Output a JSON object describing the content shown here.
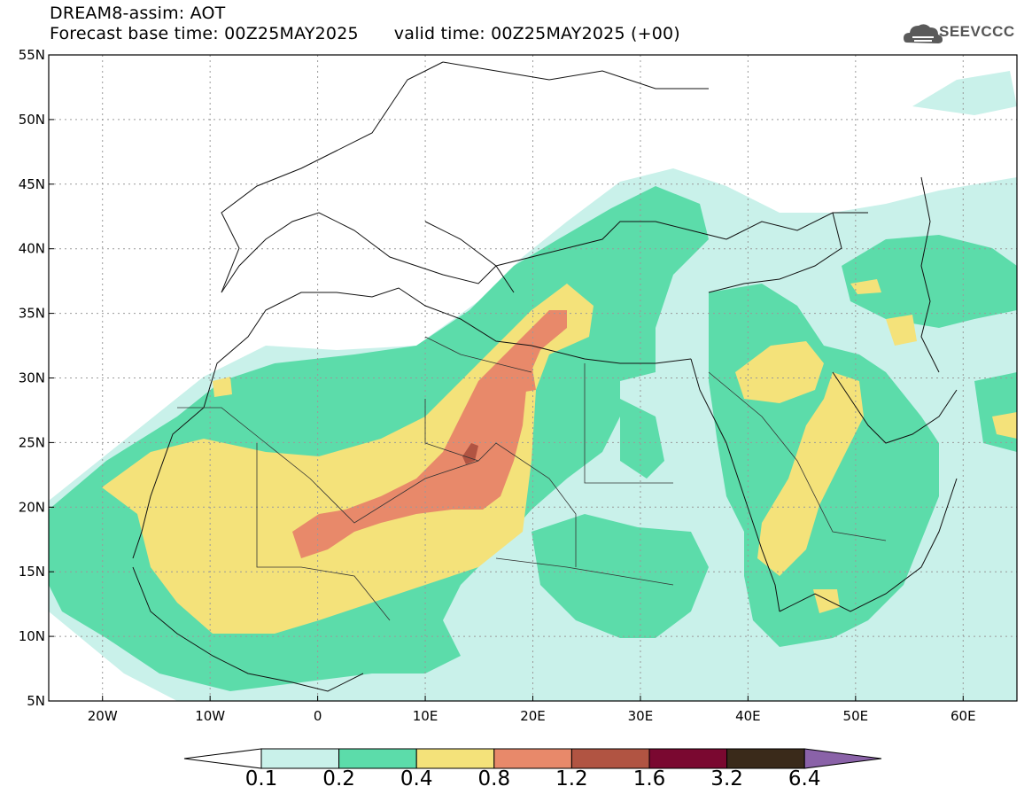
{
  "header": {
    "line1": "DREAM8-assim: AOT",
    "forecast": "Forecast base time: 00Z25MAY2025",
    "valid": "valid time: 00Z25MAY2025 (+00)"
  },
  "logo": {
    "text": "SEEVCCC",
    "icon": "cloud-icon"
  },
  "map": {
    "lat_range": [
      5,
      55
    ],
    "lon_range": [
      -25,
      65
    ],
    "lat_labels": [
      "55N",
      "50N",
      "45N",
      "40N",
      "35N",
      "30N",
      "25N",
      "20N",
      "15N",
      "10N",
      "5N"
    ],
    "lat_values": [
      55,
      50,
      45,
      40,
      35,
      30,
      25,
      20,
      15,
      10,
      5
    ],
    "lon_labels": [
      "20W",
      "10W",
      "0",
      "10E",
      "20E",
      "30E",
      "40E",
      "50E",
      "60E"
    ],
    "lon_values": [
      -20,
      -10,
      0,
      10,
      20,
      30,
      40,
      50,
      60
    ]
  },
  "colorbar": {
    "labels": [
      "0.1",
      "0.2",
      "0.4",
      "0.8",
      "1.2",
      "1.6",
      "3.2",
      "6.4"
    ],
    "colors": [
      "#c9f1ea",
      "#5cdcaa",
      "#f4e27a",
      "#e8896a",
      "#b15442",
      "#7a0830",
      "#3a2a1a",
      "#8a62a8"
    ]
  }
}
